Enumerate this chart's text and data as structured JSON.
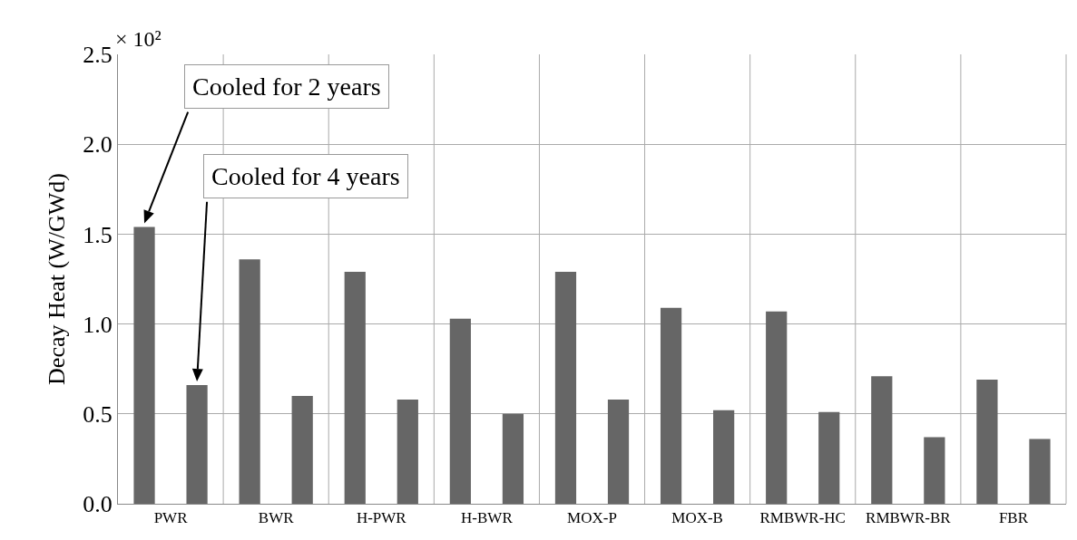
{
  "chart_data": {
    "type": "bar",
    "ylabel": "Decay Heat (W/GWd)",
    "categories": [
      "PWR",
      "BWR",
      "H-PWR",
      "H-BWR",
      "MOX-P",
      "MOX-B",
      "RMBWR-HC",
      "RMBWR-BR",
      "FBR"
    ],
    "series": [
      {
        "color": "#666666",
        "values": [
          1.54,
          1.36,
          1.29,
          1.03,
          1.29,
          1.09,
          1.07,
          0.71,
          0.69
        ]
      },
      {
        "color": "#666666",
        "values": [
          0.66,
          0.6,
          0.58,
          0.5,
          0.58,
          0.52,
          0.51,
          0.37,
          0.36
        ]
      }
    ],
    "ylim": [
      0,
      2.5
    ],
    "yticks": [
      {
        "value": 0,
        "label": "0.0"
      },
      0.5,
      {
        "value": 1,
        "label": "1.0"
      },
      1.5,
      {
        "value": 2,
        "label": "2.0"
      },
      2.5
    ],
    "grid": true,
    "annotations": [
      "× 10²",
      "Cooled for 2 years",
      "Cooled for 4 years"
    ]
  }
}
